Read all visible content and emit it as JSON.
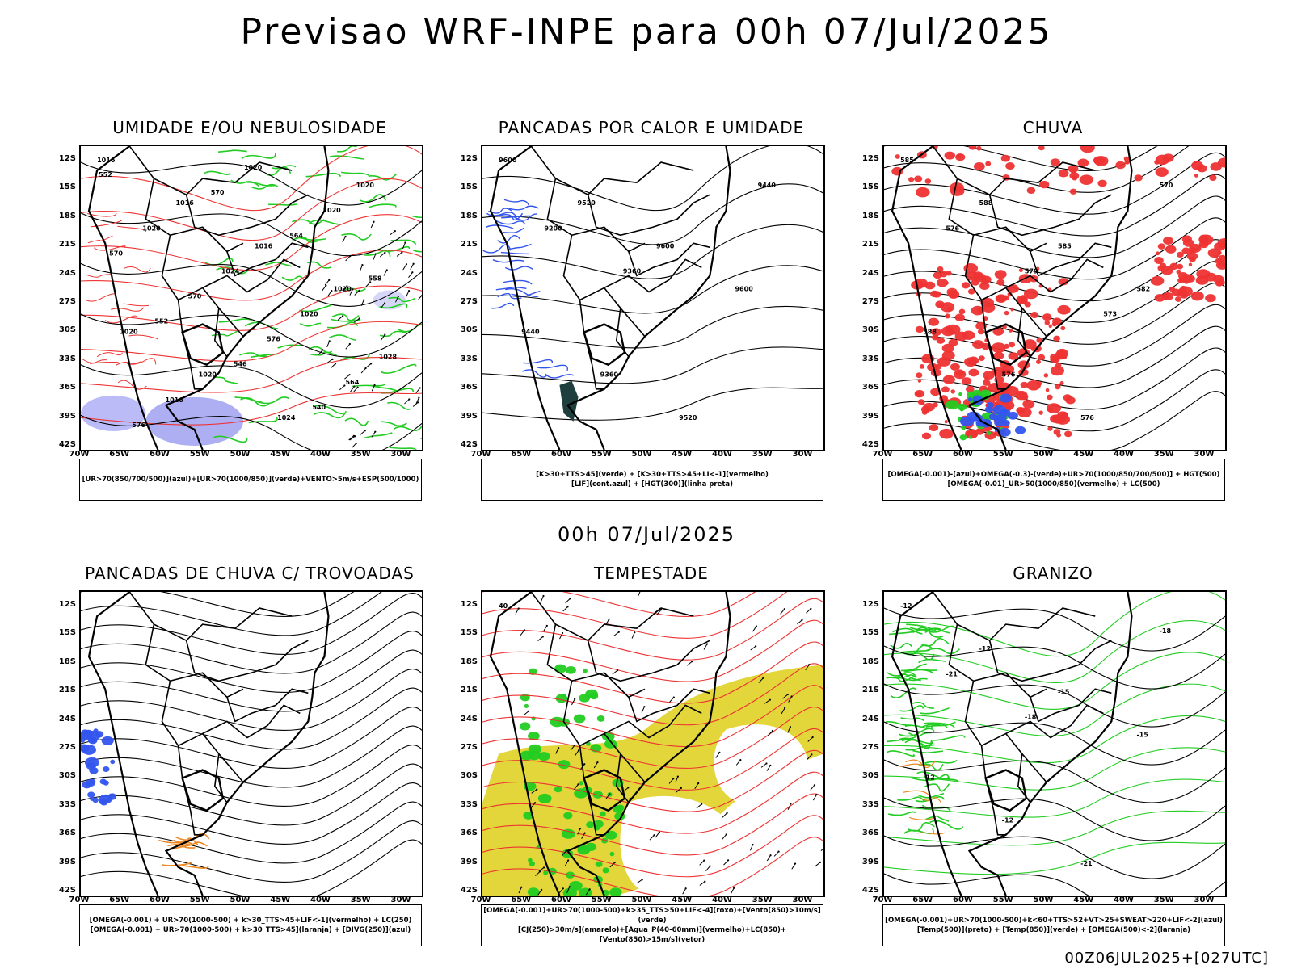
{
  "title": "Previsao WRF-INPE  para 00h 07/Jul/2025",
  "mid_title": "00h 07/Jul/2025",
  "footer": "00Z06JUL2025+[027UTC]",
  "lat_labels": [
    "12S",
    "15S",
    "18S",
    "21S",
    "24S",
    "27S",
    "30S",
    "33S",
    "36S",
    "39S",
    "42S"
  ],
  "lon_labels": [
    "70W",
    "65W",
    "60W",
    "55W",
    "50W",
    "45W",
    "40W",
    "35W",
    "30W"
  ],
  "panels": [
    {
      "id": "umidade",
      "title": "UMIDADE E/OU NEBULOSIDADE",
      "legend": [
        "[UR>70(850/700/500)](azul)+[UR>70(1000/850)](verde)+VENTO>5m/s+ESP(500/1000)"
      ],
      "contour_labels": [
        "1016",
        "1016",
        "1016",
        "1020",
        "1020",
        "1020",
        "1024",
        "1020",
        "1020",
        "1024",
        "1020",
        "1028",
        "1016",
        "1020",
        "1020",
        "570",
        "570",
        "576",
        "564",
        "576",
        "570",
        "564",
        "558",
        "552",
        "546",
        "540",
        "552"
      ]
    },
    {
      "id": "pancadas-calor",
      "title": "PANCADAS POR CALOR E UMIDADE",
      "legend": [
        "[K>30+TTS>45](verde) + [K>30+TTS>45+LI<-1](vermelho)",
        "[LIF](cont.azul) + [HGT(300)](linha preta)"
      ],
      "contour_labels": [
        "9600",
        "9520",
        "9600",
        "9600",
        "9440",
        "9360",
        "9520",
        "9440",
        "9200",
        "9360"
      ]
    },
    {
      "id": "chuva",
      "title": "CHUVA",
      "legend": [
        "[OMEGA(-0.001)-(azul)+OMEGA(-0.3)-(verde)+UR>70(1000/850/700/500)] + HGT(500)",
        "[OMEGA(-0.01)_UR>50(1000/850)(vermelho) + LC(500)"
      ],
      "contour_labels": [
        "585",
        "588",
        "585",
        "582",
        "588",
        "576",
        "576",
        "570",
        "576",
        "579",
        "573"
      ]
    },
    {
      "id": "trovoadas",
      "title": "PANCADAS DE CHUVA C/ TROVOADAS",
      "legend": [
        "[OMEGA(-0.001) + UR>70(1000-500) + k>30_TTS>45+LIF<-1](vermelho) + LC(250)",
        "[OMEGA(-0.001) + UR>70(1000-500) + k>30_TTS>45](laranja) + [DIVG(250)](azul)"
      ],
      "contour_labels": []
    },
    {
      "id": "tempestade",
      "title": "TEMPESTADE",
      "legend": [
        "[OMEGA(-0.001)+UR>70(1000-500)+k>35_TTS>50+LIF<-4](roxo)+[Vento(850)>10m/s](verde)",
        "[CJ(250)>30m/s](amarelo)+[Agua_P(40-60mm)](vermelho)+LC(850)+[Vento(850)>15m/s](vetor)"
      ],
      "contour_labels": [
        "40"
      ]
    },
    {
      "id": "granizo",
      "title": "GRANIZO",
      "legend": [
        "[OMEGA(-0.001)+UR>70(1000-500)+k<60+TTS>52+VT>25+SWEAT>220+LIF<-2](azul)",
        "[Temp(500)](preto) + [Temp(850)](verde) + [OMEGA(500)<-2](laranja)"
      ],
      "contour_labels": [
        "-12",
        "-12",
        "-15",
        "-15",
        "-12",
        "-12",
        "-21",
        "-18",
        "-21",
        "-18"
      ]
    }
  ]
}
